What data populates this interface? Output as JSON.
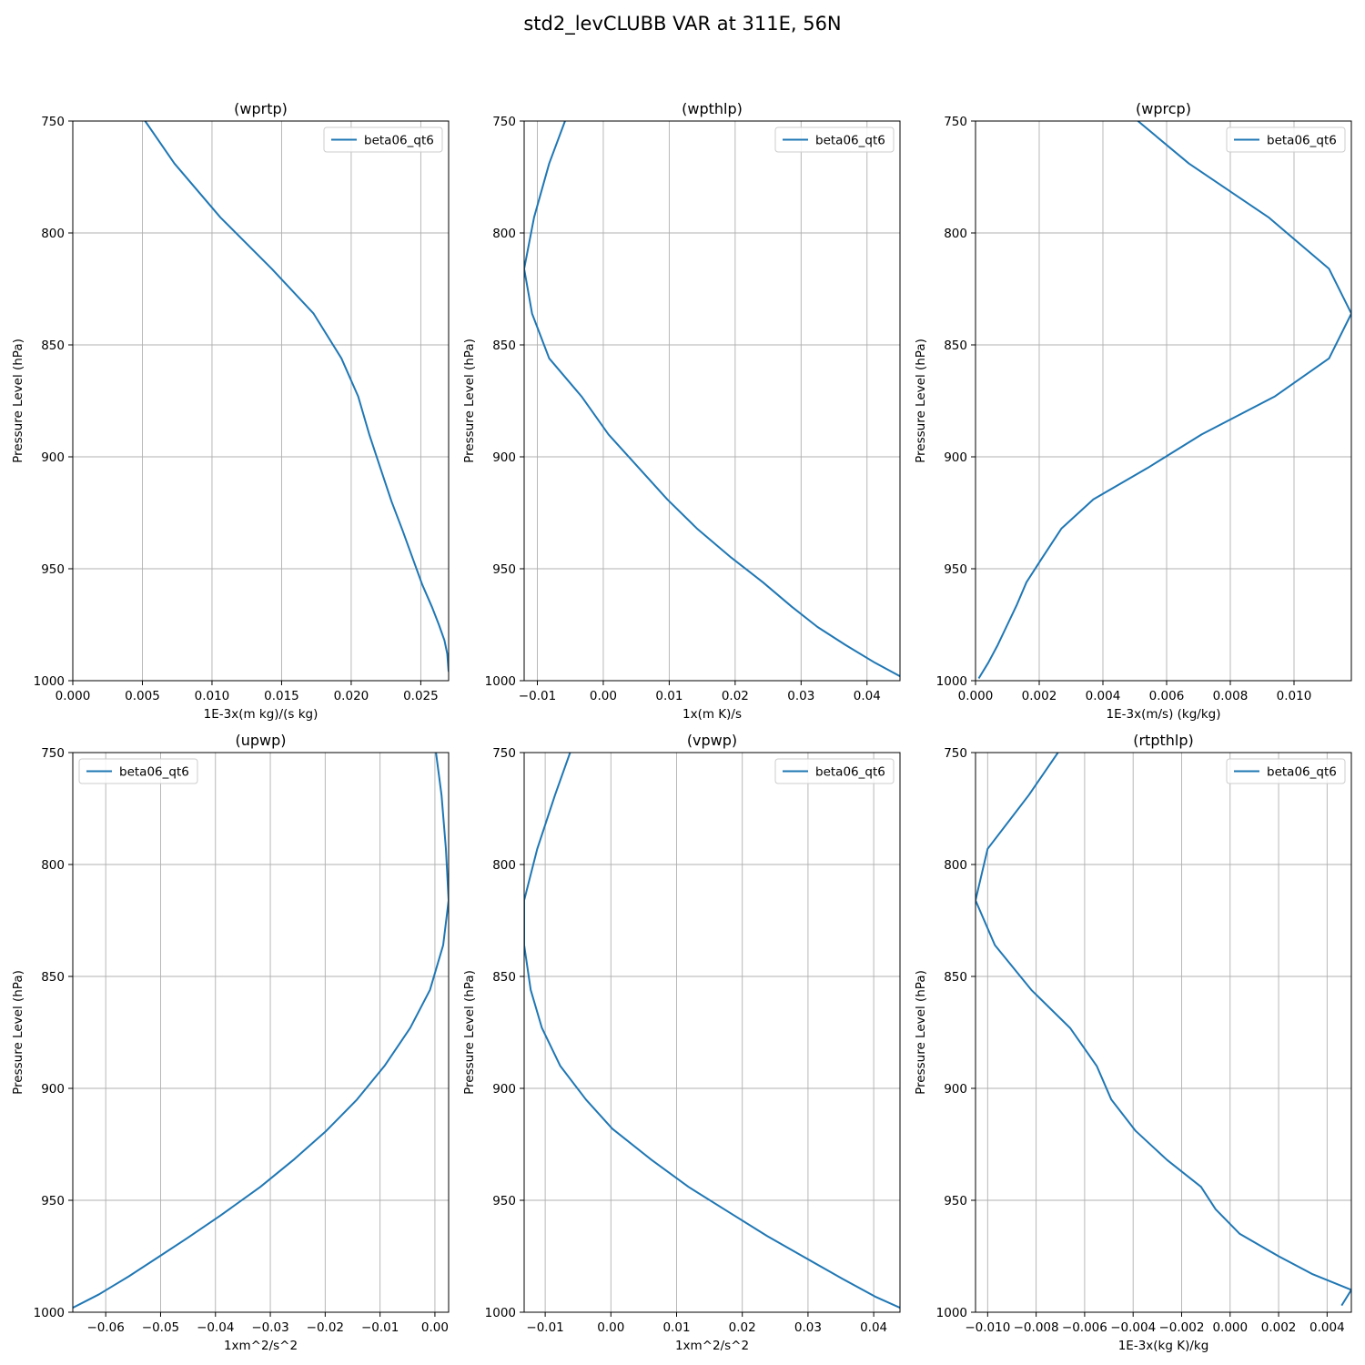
{
  "figure": {
    "title": "std2_levCLUBB VAR at 311E, 56N"
  },
  "chart_data": [
    {
      "type": "line",
      "title": "(wprtp)",
      "xlabel": "1E-3x(m kg)/(s kg)",
      "ylabel": "Pressure Level (hPa)",
      "xlim": [
        0.0,
        0.027
      ],
      "ylim": [
        1000,
        750
      ],
      "xticks": [
        0.0,
        0.005,
        0.01,
        0.015,
        0.02,
        0.025
      ],
      "xtick_labels": [
        "0.000",
        "0.005",
        "0.010",
        "0.015",
        "0.020",
        "0.025"
      ],
      "yticks": [
        750,
        800,
        850,
        900,
        950,
        1000
      ],
      "ytick_labels": [
        "750",
        "800",
        "850",
        "900",
        "950",
        "1000"
      ],
      "grid": true,
      "legend": {
        "position": "top-right",
        "entries": [
          "beta06_qt6"
        ]
      },
      "series": [
        {
          "name": "beta06_qt6",
          "color": "#1f77b4",
          "points": [
            [
              0.0052,
              750
            ],
            [
              0.0073,
              769
            ],
            [
              0.0106,
              793
            ],
            [
              0.0143,
              816
            ],
            [
              0.0173,
              836
            ],
            [
              0.0193,
              856
            ],
            [
              0.0205,
              873
            ],
            [
              0.0213,
              890
            ],
            [
              0.0221,
              905
            ],
            [
              0.0229,
              920
            ],
            [
              0.0237,
              933
            ],
            [
              0.0244,
              945
            ],
            [
              0.0251,
              957
            ],
            [
              0.0258,
              967
            ],
            [
              0.0263,
              975
            ],
            [
              0.0267,
              982
            ],
            [
              0.0269,
              988
            ],
            [
              0.027,
              996
            ]
          ]
        }
      ]
    },
    {
      "type": "line",
      "title": "(wpthlp)",
      "xlabel": "1x(m K)/s",
      "ylabel": "Pressure Level (hPa)",
      "xlim": [
        -0.012,
        0.045
      ],
      "ylim": [
        1000,
        750
      ],
      "xticks": [
        -0.01,
        0.0,
        0.01,
        0.02,
        0.03,
        0.04
      ],
      "xtick_labels": [
        "−0.01",
        "0.00",
        "0.01",
        "0.02",
        "0.03",
        "0.04"
      ],
      "yticks": [
        750,
        800,
        850,
        900,
        950,
        1000
      ],
      "ytick_labels": [
        "750",
        "800",
        "850",
        "900",
        "950",
        "1000"
      ],
      "grid": true,
      "legend": {
        "position": "top-right",
        "entries": [
          "beta06_qt6"
        ]
      },
      "series": [
        {
          "name": "beta06_qt6",
          "color": "#1f77b4",
          "points": [
            [
              -0.0058,
              750
            ],
            [
              -0.0082,
              769
            ],
            [
              -0.0105,
              793
            ],
            [
              -0.012,
              816
            ],
            [
              -0.0108,
              836
            ],
            [
              -0.0082,
              856
            ],
            [
              -0.0033,
              873
            ],
            [
              0.0008,
              890
            ],
            [
              0.0054,
              905
            ],
            [
              0.0097,
              919
            ],
            [
              0.0142,
              932
            ],
            [
              0.0194,
              945
            ],
            [
              0.0242,
              956
            ],
            [
              0.0286,
              967
            ],
            [
              0.0325,
              976
            ],
            [
              0.0367,
              984
            ],
            [
              0.0412,
              992
            ],
            [
              0.045,
              998
            ]
          ]
        }
      ]
    },
    {
      "type": "line",
      "title": "(wprcp)",
      "xlabel": "1E-3x(m/s) (kg/kg)",
      "ylabel": "Pressure Level (hPa)",
      "xlim": [
        0.0,
        0.0118
      ],
      "ylim": [
        1000,
        750
      ],
      "xticks": [
        0.0,
        0.002,
        0.004,
        0.006,
        0.008,
        0.01
      ],
      "xtick_labels": [
        "0.000",
        "0.002",
        "0.004",
        "0.006",
        "0.008",
        "0.010"
      ],
      "yticks": [
        750,
        800,
        850,
        900,
        950,
        1000
      ],
      "ytick_labels": [
        "750",
        "800",
        "850",
        "900",
        "950",
        "1000"
      ],
      "grid": true,
      "legend": {
        "position": "top-right",
        "entries": [
          "beta06_qt6"
        ]
      },
      "series": [
        {
          "name": "beta06_qt6",
          "color": "#1f77b4",
          "points": [
            [
              0.0051,
              750
            ],
            [
              0.0067,
              769
            ],
            [
              0.0092,
              793
            ],
            [
              0.0111,
              816
            ],
            [
              0.0118,
              836
            ],
            [
              0.0111,
              856
            ],
            [
              0.0094,
              873
            ],
            [
              0.0071,
              890
            ],
            [
              0.0054,
              905
            ],
            [
              0.0037,
              919
            ],
            [
              0.0027,
              932
            ],
            [
              0.0021,
              945
            ],
            [
              0.0016,
              956
            ],
            [
              0.0013,
              966
            ],
            [
              0.001,
              975
            ],
            [
              0.0007,
              984
            ],
            [
              0.0004,
              992
            ],
            [
              0.0001,
              999
            ]
          ]
        }
      ]
    },
    {
      "type": "line",
      "title": "(upwp)",
      "xlabel": "1xm^2/s^2",
      "ylabel": "Pressure Level (hPa)",
      "xlim": [
        -0.066,
        0.0025
      ],
      "ylim": [
        1000,
        750
      ],
      "xticks": [
        -0.06,
        -0.05,
        -0.04,
        -0.03,
        -0.02,
        -0.01,
        0.0
      ],
      "xtick_labels": [
        "−0.06",
        "−0.05",
        "−0.04",
        "−0.03",
        "−0.02",
        "−0.01",
        "0.00"
      ],
      "yticks": [
        750,
        800,
        850,
        900,
        950,
        1000
      ],
      "ytick_labels": [
        "750",
        "800",
        "850",
        "900",
        "950",
        "1000"
      ],
      "grid": true,
      "legend": {
        "position": "top-left",
        "entries": [
          "beta06_qt6"
        ]
      },
      "series": [
        {
          "name": "beta06_qt6",
          "color": "#1f77b4",
          "points": [
            [
              0.0002,
              750
            ],
            [
              0.0012,
              769
            ],
            [
              0.002,
              793
            ],
            [
              0.0025,
              816
            ],
            [
              0.0015,
              836
            ],
            [
              -0.0009,
              856
            ],
            [
              -0.0045,
              873
            ],
            [
              -0.0092,
              890
            ],
            [
              -0.0142,
              905
            ],
            [
              -0.0198,
              919
            ],
            [
              -0.0258,
              932
            ],
            [
              -0.0318,
              944
            ],
            [
              -0.0392,
              957
            ],
            [
              -0.0452,
              967
            ],
            [
              -0.0508,
              976
            ],
            [
              -0.0558,
              984
            ],
            [
              -0.0612,
              992
            ],
            [
              -0.066,
              998
            ]
          ]
        }
      ]
    },
    {
      "type": "line",
      "title": "(vpwp)",
      "xlabel": "1xm^2/s^2",
      "ylabel": "Pressure Level (hPa)",
      "xlim": [
        -0.0132,
        0.044
      ],
      "ylim": [
        1000,
        750
      ],
      "xticks": [
        -0.01,
        0.0,
        0.01,
        0.02,
        0.03,
        0.04
      ],
      "xtick_labels": [
        "−0.01",
        "0.00",
        "0.01",
        "0.02",
        "0.03",
        "0.04"
      ],
      "yticks": [
        750,
        800,
        850,
        900,
        950,
        1000
      ],
      "ytick_labels": [
        "750",
        "800",
        "850",
        "900",
        "950",
        "1000"
      ],
      "grid": true,
      "legend": {
        "position": "top-right",
        "entries": [
          "beta06_qt6"
        ]
      },
      "series": [
        {
          "name": "beta06_qt6",
          "color": "#1f77b4",
          "points": [
            [
              -0.0062,
              750
            ],
            [
              -0.0085,
              769
            ],
            [
              -0.0112,
              793
            ],
            [
              -0.0132,
              816
            ],
            [
              -0.0132,
              836
            ],
            [
              -0.0122,
              856
            ],
            [
              -0.0105,
              873
            ],
            [
              -0.0077,
              890
            ],
            [
              -0.0038,
              905
            ],
            [
              0.0002,
              918
            ],
            [
              0.0062,
              932
            ],
            [
              0.0118,
              944
            ],
            [
              0.0178,
              955
            ],
            [
              0.0238,
              966
            ],
            [
              0.0298,
              976
            ],
            [
              0.0352,
              985
            ],
            [
              0.0402,
              993
            ],
            [
              0.044,
              998
            ]
          ]
        }
      ]
    },
    {
      "type": "line",
      "title": "(rtpthlp)",
      "xlabel": "1E-3x(kg K)/kg",
      "ylabel": "Pressure Level (hPa)",
      "xlim": [
        -0.0105,
        0.005
      ],
      "ylim": [
        1000,
        750
      ],
      "xticks": [
        -0.01,
        -0.008,
        -0.006,
        -0.004,
        -0.002,
        0.0,
        0.002,
        0.004
      ],
      "xtick_labels": [
        "−0.010",
        "−0.008",
        "−0.006",
        "−0.004",
        "−0.002",
        "0.000",
        "0.002",
        "0.004"
      ],
      "yticks": [
        750,
        800,
        850,
        900,
        950,
        1000
      ],
      "ytick_labels": [
        "750",
        "800",
        "850",
        "900",
        "950",
        "1000"
      ],
      "grid": true,
      "legend": {
        "position": "top-right",
        "entries": [
          "beta06_qt6"
        ]
      },
      "series": [
        {
          "name": "beta06_qt6",
          "color": "#1f77b4",
          "points": [
            [
              -0.0071,
              750
            ],
            [
              -0.0083,
              769
            ],
            [
              -0.01,
              793
            ],
            [
              -0.0105,
              816
            ],
            [
              -0.0097,
              836
            ],
            [
              -0.0082,
              856
            ],
            [
              -0.0066,
              873
            ],
            [
              -0.0055,
              890
            ],
            [
              -0.0049,
              905
            ],
            [
              -0.0039,
              919
            ],
            [
              -0.0026,
              932
            ],
            [
              -0.0012,
              944
            ],
            [
              -0.0006,
              954
            ],
            [
              0.0004,
              965
            ],
            [
              0.002,
              975
            ],
            [
              0.0034,
              983
            ],
            [
              0.005,
              990
            ],
            [
              0.0046,
              997
            ]
          ]
        }
      ]
    }
  ]
}
